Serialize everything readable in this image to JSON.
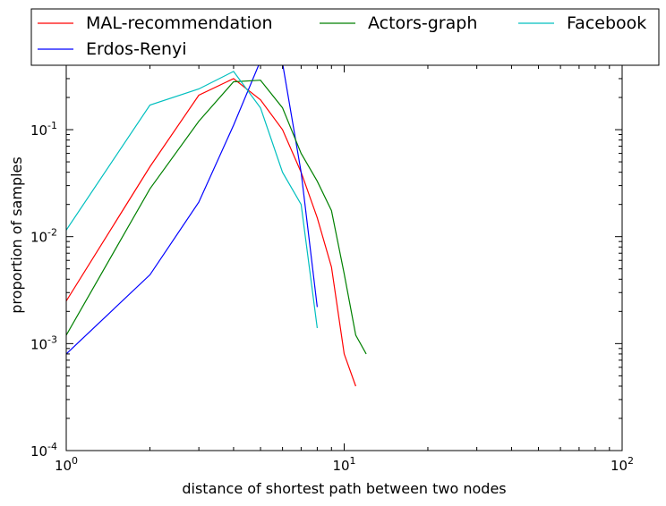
{
  "chart_data": {
    "type": "line",
    "title": "",
    "xlabel": "distance of shortest path between two nodes",
    "ylabel": "proportion of samples",
    "xscale": "log",
    "yscale": "log",
    "xlim": [
      1,
      100
    ],
    "ylim": [
      0.0001,
      0.4
    ],
    "x_ticks": [
      {
        "value": 1,
        "base": "10",
        "exp": "0"
      },
      {
        "value": 10,
        "base": "10",
        "exp": "1"
      },
      {
        "value": 100,
        "base": "10",
        "exp": "2"
      }
    ],
    "y_ticks": [
      {
        "value": 0.0001,
        "base": "10",
        "exp": "-4"
      },
      {
        "value": 0.001,
        "base": "10",
        "exp": "-3"
      },
      {
        "value": 0.01,
        "base": "10",
        "exp": "-2"
      },
      {
        "value": 0.1,
        "base": "10",
        "exp": "-1"
      }
    ],
    "legend_position": "top, outside plot",
    "series": [
      {
        "name": "MAL-recommendation",
        "color": "#ff0000",
        "x": [
          1,
          2,
          3,
          4,
          5,
          6,
          7,
          8,
          9,
          10,
          11
        ],
        "y": [
          0.0025,
          0.045,
          0.21,
          0.3,
          0.19,
          0.1,
          0.04,
          0.015,
          0.0052,
          0.0008,
          0.0004
        ]
      },
      {
        "name": "Erdos-Renyi",
        "color": "#0000ff",
        "x": [
          1,
          2,
          3,
          4,
          5,
          6,
          7,
          8
        ],
        "y": [
          0.0008,
          0.0044,
          0.021,
          0.11,
          0.44,
          0.42,
          0.04,
          0.0022
        ]
      },
      {
        "name": "Actors-graph",
        "color": "#008000",
        "x": [
          1,
          2,
          3,
          4,
          5,
          6,
          7,
          8,
          9,
          10,
          11,
          12
        ],
        "y": [
          0.0012,
          0.028,
          0.12,
          0.28,
          0.29,
          0.16,
          0.06,
          0.033,
          0.0175,
          0.0045,
          0.0012,
          0.0008
        ]
      },
      {
        "name": "Facebook",
        "color": "#00bfbf",
        "x": [
          1,
          2,
          3,
          4,
          5,
          6,
          7,
          8
        ],
        "y": [
          0.0115,
          0.17,
          0.24,
          0.35,
          0.16,
          0.04,
          0.02,
          0.0014
        ]
      }
    ]
  }
}
